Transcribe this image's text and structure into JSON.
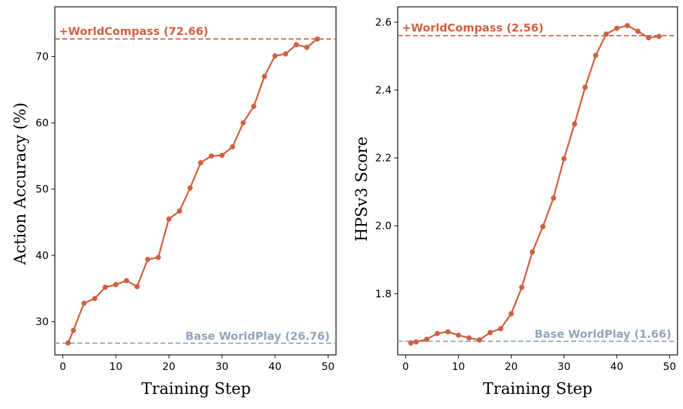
{
  "colors": {
    "series": "#D0603F",
    "top_ref": "#D0603F",
    "base_ref": "#8FA6BD"
  },
  "chart_data": [
    {
      "type": "line",
      "xlabel": "Training Step",
      "ylabel": "Action Accuracy (%)",
      "xlim": [
        -1.5,
        51.5
      ],
      "ylim": [
        25,
        77.5
      ],
      "xticks": [
        0,
        10,
        20,
        30,
        40,
        50
      ],
      "yticks": [
        30,
        40,
        50,
        60,
        70
      ],
      "x": [
        1,
        2,
        4,
        6,
        8,
        10,
        12,
        14,
        16,
        18,
        20,
        22,
        24,
        26,
        28,
        30,
        32,
        34,
        36,
        38,
        40,
        42,
        44,
        46,
        48
      ],
      "y": [
        26.8,
        28.7,
        32.8,
        33.5,
        35.2,
        35.6,
        36.2,
        35.3,
        39.4,
        39.7,
        45.5,
        46.7,
        50.2,
        54.0,
        55.0,
        55.1,
        56.4,
        60.0,
        62.5,
        67.0,
        70.1,
        70.4,
        71.8,
        71.4,
        72.66
      ],
      "reference_lines": [
        {
          "label": "+WorldCompass (72.66)",
          "value": 72.66,
          "style": "dashed",
          "label_position": "top-left"
        },
        {
          "label": "Base WorldPlay (26.76)",
          "value": 26.76,
          "style": "dashed",
          "label_position": "bottom-right"
        }
      ]
    },
    {
      "type": "line",
      "xlabel": "Training Step",
      "ylabel": "HPSv3 Score",
      "xlim": [
        -1.5,
        51.5
      ],
      "ylim": [
        1.62,
        2.645
      ],
      "xticks": [
        0,
        10,
        20,
        30,
        40,
        50
      ],
      "yticks": [
        1.8,
        2.0,
        2.2,
        2.4,
        2.6
      ],
      "x": [
        1,
        2,
        4,
        6,
        8,
        10,
        12,
        14,
        16,
        18,
        20,
        22,
        24,
        26,
        28,
        30,
        32,
        34,
        36,
        38,
        40,
        42,
        44,
        46,
        48
      ],
      "y": [
        1.655,
        1.658,
        1.666,
        1.683,
        1.688,
        1.678,
        1.67,
        1.664,
        1.686,
        1.697,
        1.741,
        1.819,
        1.923,
        1.998,
        2.082,
        2.198,
        2.3,
        2.408,
        2.502,
        2.565,
        2.582,
        2.59,
        2.573,
        2.554,
        2.558
      ],
      "reference_lines": [
        {
          "label": "+WorldCompass (2.56)",
          "value": 2.56,
          "style": "dashed",
          "label_position": "top-left"
        },
        {
          "label": "Base WorldPlay (1.66)",
          "value": 1.66,
          "style": "dashed",
          "label_position": "bottom-right"
        }
      ]
    }
  ]
}
